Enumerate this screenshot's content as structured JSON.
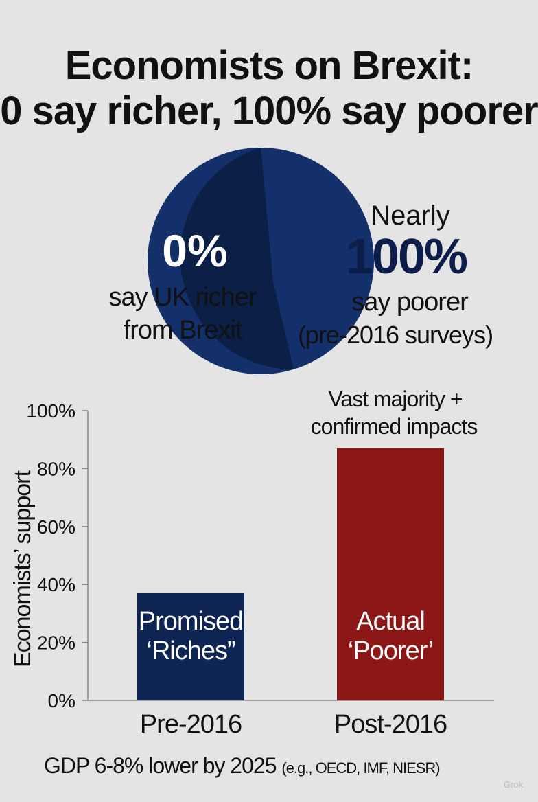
{
  "title_line1": "Economists on Brexit:",
  "title_line2": "0 say richer, 100% say poorer",
  "watermark": "Grok",
  "colors": {
    "navy_dark": "#0b1f47",
    "navy_light": "#13306b",
    "red": "#8c1717",
    "bar_navy": "#0e2452"
  },
  "chart_data": [
    {
      "type": "pie",
      "slices": [
        {
          "label": "say UK richer from Brexit",
          "value": 0,
          "value_label": "0%",
          "color": "#0b1f47"
        },
        {
          "label": "say poorer (pre-2016 surveys)",
          "value": 100,
          "value_label": "100%",
          "prefix": "Nearly",
          "color": "#13306b"
        }
      ],
      "left_text": {
        "big": "0%",
        "line1": "say UK richer",
        "line2": "from Brexit"
      },
      "right_text": {
        "prefix": "Nearly",
        "big": "100%",
        "line1": "say poorer",
        "line2": "(pre-2016 surveys)"
      }
    },
    {
      "type": "bar",
      "categories": [
        "Pre-2016",
        "Post-2016"
      ],
      "values": [
        37,
        87
      ],
      "bar_labels": [
        [
          "Promised",
          "‘Riches”"
        ],
        [
          "Actual",
          "‘Poorer’"
        ]
      ],
      "bar_colors": [
        "#0e2452",
        "#8c1717"
      ],
      "ylabel": "Economists’ support",
      "ylim": [
        0,
        100
      ],
      "yticks": [
        0,
        20,
        40,
        60,
        80,
        100
      ],
      "ytick_labels": [
        "0%",
        "20%",
        "40%",
        "60%",
        "80%",
        "100%"
      ],
      "annotation": [
        "Vast majority +",
        "confirmed impacts"
      ],
      "footnote_main": "GDP 6-8% lower by 2025",
      "footnote_small": "(e.g., OECD, IMF, NIESR)"
    }
  ]
}
